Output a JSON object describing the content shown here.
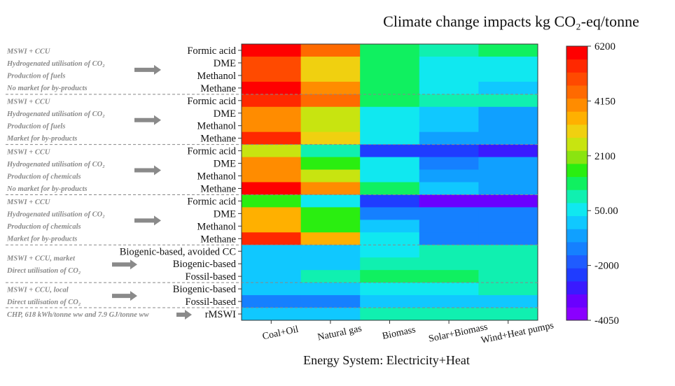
{
  "chart_data": {
    "type": "heatmap",
    "title": "Climate change impacts kg CO₂-eq/tonne",
    "xlabel": "Energy System: Electricity+Heat",
    "columns": [
      "Coal+Oil",
      "Natural gas",
      "Biomass",
      "Solar+Biomass",
      "Wind+Heat pumps"
    ],
    "rows": [
      "Formic acid",
      "DME",
      "Methanol",
      "Methane",
      "Formic acid",
      "DME",
      "Methanol",
      "Methane",
      "Formic acid",
      "DME",
      "Methanol",
      "Methane",
      "Formic acid",
      "DME",
      "Methanol",
      "Methane",
      "Biogenic-based, avoided CC",
      "Biogenic-based",
      "Fossil-based",
      "Biogenic-based",
      "Fossil-based",
      "rMSWI"
    ],
    "values": [
      [
        6000,
        4700,
        1300,
        700,
        1000
      ],
      [
        5000,
        2900,
        1300,
        200,
        200
      ],
      [
        5100,
        2900,
        1100,
        200,
        200
      ],
      [
        5800,
        4000,
        1100,
        200,
        -500
      ],
      [
        5700,
        4300,
        1300,
        600,
        500
      ],
      [
        3900,
        2300,
        200,
        -300,
        -1100
      ],
      [
        3900,
        2300,
        200,
        -300,
        -1100
      ],
      [
        5300,
        3000,
        200,
        -700,
        -1100
      ],
      [
        2500,
        600,
        -2300,
        -2500,
        -2900
      ],
      [
        3900,
        1800,
        200,
        -1200,
        -1100
      ],
      [
        3900,
        2300,
        200,
        -700,
        -1000
      ],
      [
        6000,
        3900,
        1100,
        -600,
        -1000
      ],
      [
        1800,
        200,
        -2300,
        -3200,
        -3200
      ],
      [
        3300,
        1500,
        -1200,
        -1600,
        -1500
      ],
      [
        3400,
        1600,
        -500,
        -1500,
        -1500
      ],
      [
        5300,
        3300,
        200,
        -1200,
        -1200
      ],
      [
        -300,
        -300,
        200,
        400,
        400
      ],
      [
        -300,
        -300,
        400,
        400,
        400
      ],
      [
        -300,
        600,
        900,
        900,
        600
      ],
      [
        -500,
        -500,
        200,
        200,
        500
      ],
      [
        -1600,
        -1300,
        -300,
        -300,
        -300
      ],
      [
        -300,
        -300,
        700,
        700,
        700
      ]
    ],
    "colorbar": {
      "min": -4050,
      "max": 6200,
      "ticks": [
        "6200",
        "4150",
        "2100",
        "50.00",
        "-2000",
        "-4050"
      ]
    },
    "groups": [
      {
        "lines": [
          "MSWI + CCU",
          "Hydrogenated utilisation of CO₂",
          "Production of fuels",
          "No market for by-products"
        ]
      },
      {
        "lines": [
          "MSWI + CCU",
          "Hydrogenated utilisation of CO₂",
          "Production of fuels",
          "Market for by-products"
        ]
      },
      {
        "lines": [
          "MSWI + CCU",
          "Hydrogenated utilisation of CO₂",
          "Production of chemicals",
          "No market for by-products"
        ]
      },
      {
        "lines": [
          "MSWI + CCU",
          "Hydrogenated utilisation of CO₂",
          "Production of chemicals",
          "Market for by-products"
        ]
      },
      {
        "lines": [
          "MSWI + CCU, market",
          "Direct utilisation of CO₂"
        ]
      },
      {
        "lines": [
          "MSWI + CCU, local",
          "Direct utilisation of CO₂"
        ]
      },
      {
        "lines": [
          "CHP, 618 kWh/tonne ww and 7.9 GJ/tonne ww"
        ]
      }
    ],
    "colors": [
      "#8a00ff",
      "#6a00ff",
      "#3a1aff",
      "#1f3cff",
      "#1f5cff",
      "#1580ff",
      "#10a0ff",
      "#10c8ff",
      "#10e8f0",
      "#10f0b0",
      "#10f060",
      "#2aee10",
      "#8ae410",
      "#c8e410",
      "#f0d010",
      "#ffb000",
      "#ff8c00",
      "#ff6a00",
      "#ff4a00",
      "#ff2800",
      "#ff0000"
    ]
  }
}
